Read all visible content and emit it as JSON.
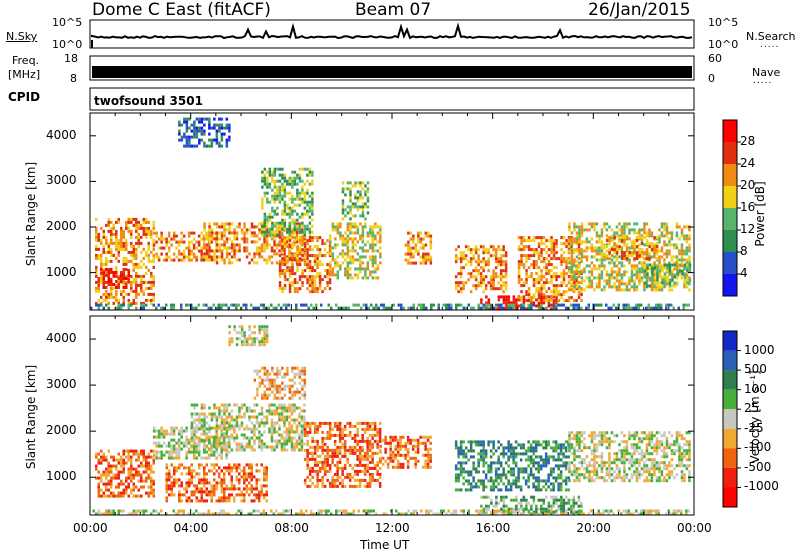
{
  "header": {
    "radar_title": "Dome C East (fitACF)",
    "beam": "Beam 07",
    "date": "26/Jan/2015"
  },
  "strips": {
    "nsky_label": "N.Sky",
    "nsearch_label": "N.Search",
    "nsky_ticks": [
      "10^5",
      "10^0"
    ],
    "freq_label_line1": "Freq.",
    "freq_label_line2": "[MHz]",
    "freq_ticks": [
      "18",
      "8"
    ],
    "nave_label": "Nave",
    "nave_ticks": [
      "60",
      "0"
    ],
    "cpid_label": "CPID",
    "cpid_value": "twofsound 3501",
    "dots": "....."
  },
  "chart_data": [
    {
      "type": "heatmap",
      "name": "power",
      "ylabel": "Slant Range [km]",
      "xlabel": "",
      "x_ticks": [
        "00:00",
        "04:00",
        "08:00",
        "12:00",
        "16:00",
        "20:00",
        "00:00"
      ],
      "x_range_hours": [
        0,
        24
      ],
      "y_ticks": [
        "1000",
        "2000",
        "3000",
        "4000"
      ],
      "y_range_km": [
        180,
        4500
      ],
      "colorbar": {
        "label": "Power [dB]",
        "ticks": [
          "4",
          "8",
          "12",
          "16",
          "20",
          "24",
          "28"
        ],
        "colors": [
          "#1414f0",
          "#2850c8",
          "#2f8f4f",
          "#59b36b",
          "#f0d018",
          "#f08a10",
          "#e03010",
          "#ff0000"
        ]
      },
      "regions": [
        {
          "t0": 0.2,
          "t1": 2.5,
          "r0": 300,
          "r1": 2200,
          "level": 5
        },
        {
          "t0": 0.3,
          "t1": 1.5,
          "r0": 700,
          "r1": 1100,
          "level": 7
        },
        {
          "t0": 2.5,
          "t1": 5.0,
          "r0": 1300,
          "r1": 1900,
          "level": 5
        },
        {
          "t0": 4.5,
          "t1": 8.5,
          "r0": 1200,
          "r1": 2100,
          "level": 5
        },
        {
          "t0": 6.8,
          "t1": 8.8,
          "r0": 1800,
          "r1": 3300,
          "level": 3
        },
        {
          "t0": 7.5,
          "t1": 9.5,
          "r0": 600,
          "r1": 1800,
          "level": 5
        },
        {
          "t0": 3.5,
          "t1": 5.5,
          "r0": 3800,
          "r1": 4400,
          "level": 1
        },
        {
          "t0": 9.5,
          "t1": 11.5,
          "r0": 900,
          "r1": 2100,
          "level": 4
        },
        {
          "t0": 10.0,
          "t1": 11.0,
          "r0": 2200,
          "r1": 3000,
          "level": 3
        },
        {
          "t0": 12.5,
          "t1": 13.5,
          "r0": 1200,
          "r1": 1900,
          "level": 5
        },
        {
          "t0": 14.5,
          "t1": 16.5,
          "r0": 600,
          "r1": 1600,
          "level": 5
        },
        {
          "t0": 15.5,
          "t1": 18.5,
          "r0": 200,
          "r1": 500,
          "level": 7
        },
        {
          "t0": 17.0,
          "t1": 19.5,
          "r0": 400,
          "r1": 1800,
          "level": 5
        },
        {
          "t0": 19.0,
          "t1": 23.8,
          "r0": 600,
          "r1": 2100,
          "level": 4
        },
        {
          "t0": 20.5,
          "t1": 22.5,
          "r0": 1300,
          "r1": 1800,
          "level": 5
        },
        {
          "t0": 22.0,
          "t1": 23.8,
          "r0": 700,
          "r1": 1200,
          "level": 3
        },
        {
          "t0": 0.0,
          "t1": 23.8,
          "r0": 200,
          "r1": 320,
          "level": 2
        }
      ]
    },
    {
      "type": "heatmap",
      "name": "velocity",
      "ylabel": "Slant Range [km]",
      "xlabel": "Time UT",
      "x_ticks": [
        "00:00",
        "04:00",
        "08:00",
        "12:00",
        "16:00",
        "20:00",
        "00:00"
      ],
      "x_range_hours": [
        0,
        24
      ],
      "y_ticks": [
        "1000",
        "2000",
        "3000",
        "4000"
      ],
      "y_range_km": [
        180,
        4500
      ],
      "colorbar": {
        "label": "Velocity [m s⁻¹]",
        "ticks": [
          "1000",
          "500",
          "100",
          "25",
          "-25",
          "-100",
          "-500",
          "-1000"
        ],
        "colors": [
          "#1428c8",
          "#2860b8",
          "#2f7f4f",
          "#48b03a",
          "#c8c8c0",
          "#f0a830",
          "#f06410",
          "#f02010",
          "#ff0000"
        ]
      },
      "regions": [
        {
          "t0": 0.2,
          "t1": 2.5,
          "r0": 600,
          "r1": 1600,
          "level": 6
        },
        {
          "t0": 2.5,
          "t1": 5.5,
          "r0": 1400,
          "r1": 2100,
          "level": 4
        },
        {
          "t0": 4.0,
          "t1": 8.5,
          "r0": 1600,
          "r1": 2600,
          "level": 4
        },
        {
          "t0": 6.5,
          "t1": 8.5,
          "r0": 2700,
          "r1": 3400,
          "level": 5
        },
        {
          "t0": 8.5,
          "t1": 11.5,
          "r0": 800,
          "r1": 2200,
          "level": 6
        },
        {
          "t0": 3.0,
          "t1": 7.0,
          "r0": 500,
          "r1": 1300,
          "level": 6
        },
        {
          "t0": 11.5,
          "t1": 13.5,
          "r0": 1200,
          "r1": 1900,
          "level": 6
        },
        {
          "t0": 14.5,
          "t1": 19.0,
          "r0": 700,
          "r1": 1800,
          "level": 2
        },
        {
          "t0": 15.5,
          "t1": 19.5,
          "r0": 250,
          "r1": 600,
          "level": 3
        },
        {
          "t0": 19.0,
          "t1": 23.8,
          "r0": 900,
          "r1": 2000,
          "level": 4
        },
        {
          "t0": 5.5,
          "t1": 7.0,
          "r0": 3900,
          "r1": 4300,
          "level": 4
        },
        {
          "t0": 0.0,
          "t1": 23.8,
          "r0": 200,
          "r1": 300,
          "level": 4
        }
      ]
    }
  ]
}
